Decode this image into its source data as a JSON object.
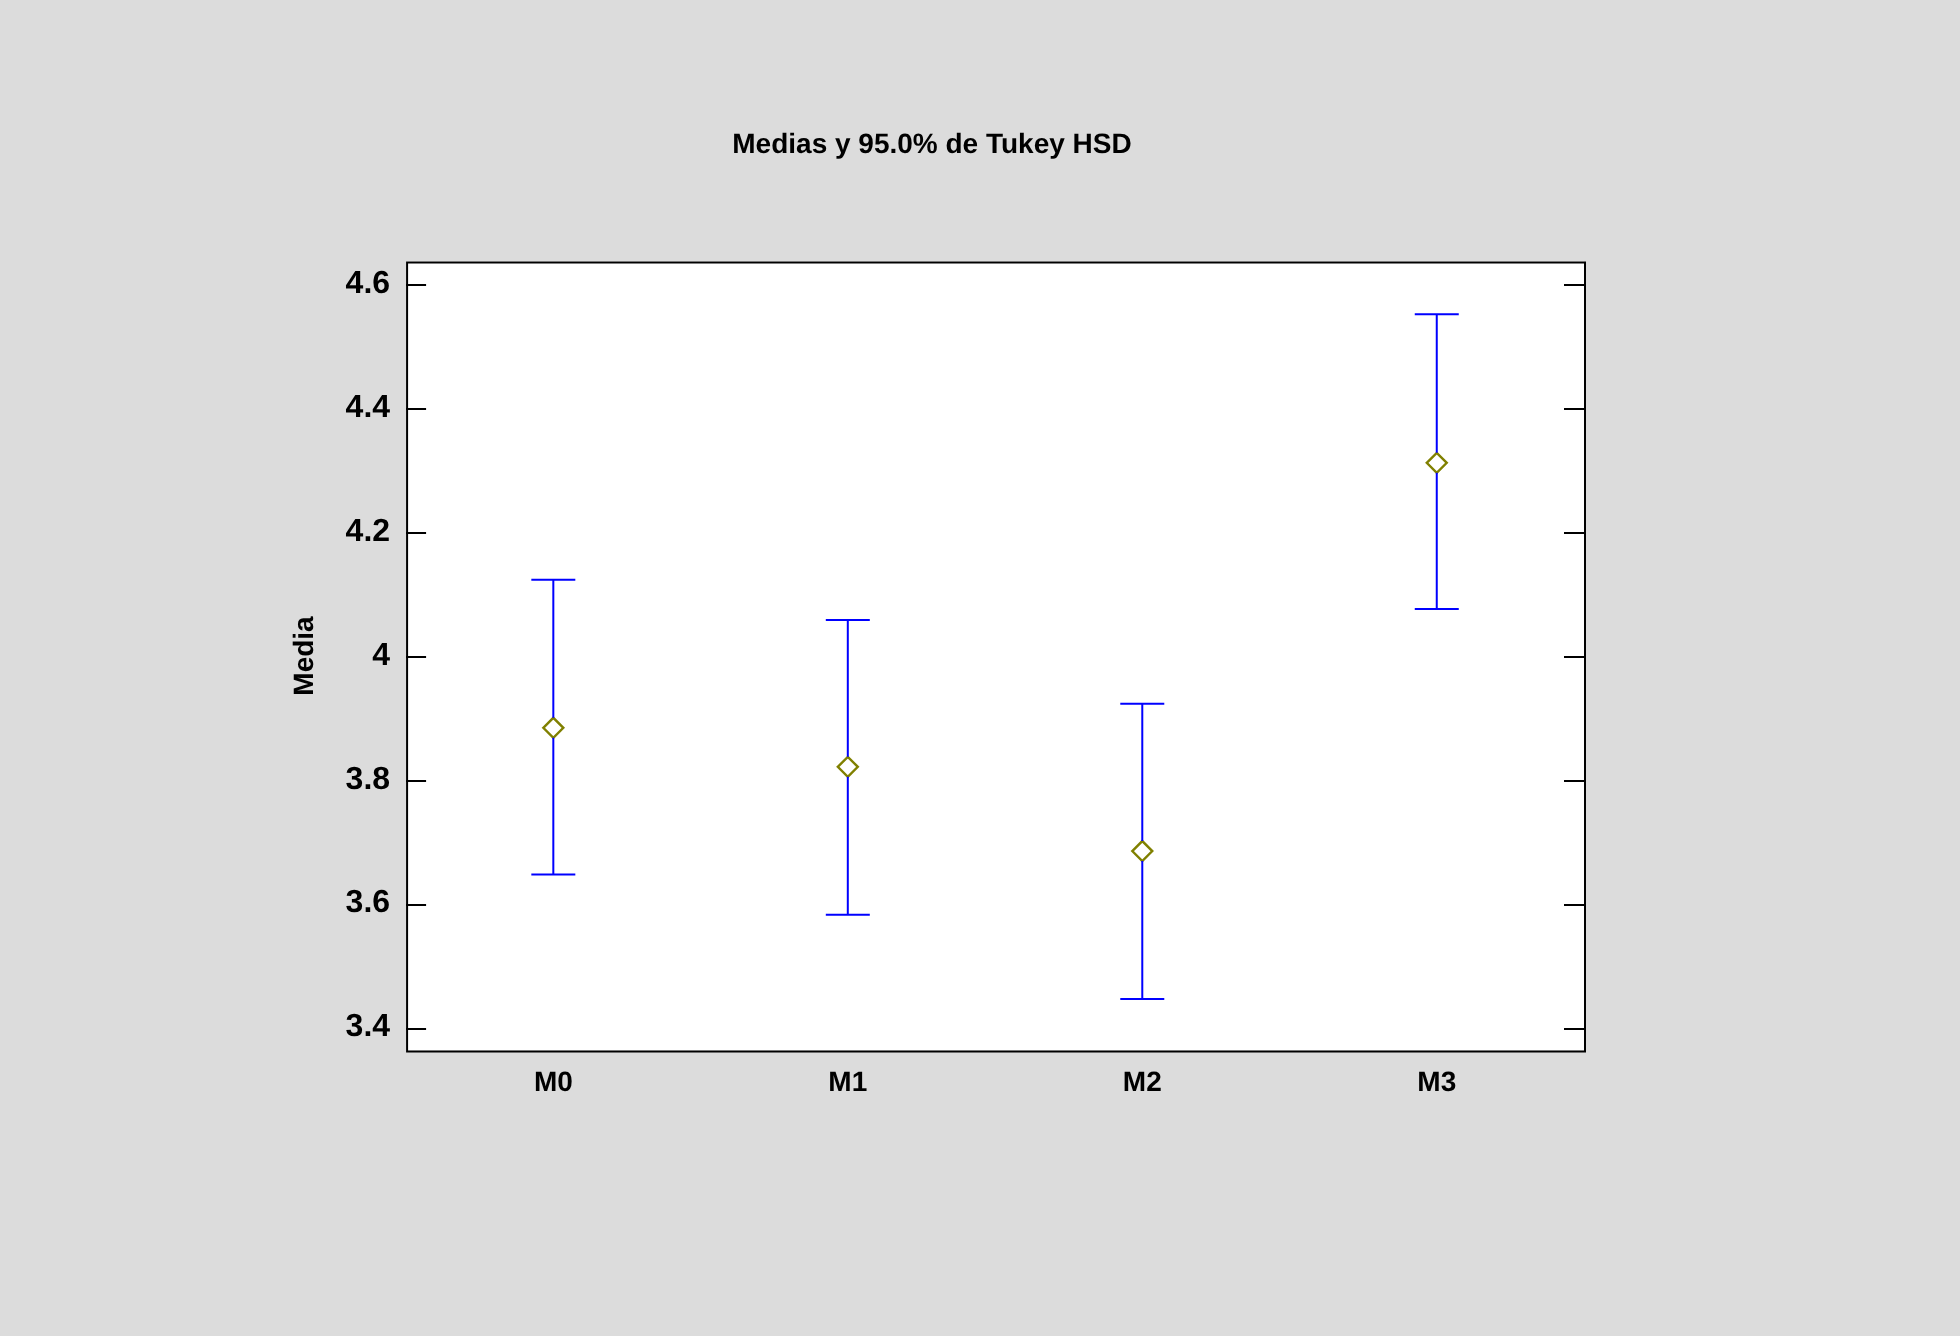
{
  "chart_data": {
    "type": "scatter",
    "title": "Medias y 95.0% de Tukey HSD",
    "ylabel": "Media",
    "categories": [
      "M0",
      "M1",
      "M2",
      "M3"
    ],
    "series": [
      {
        "color": "#808000",
        "values": [
          3.884,
          3.821,
          3.685,
          4.312
        ],
        "errors": [
          [
            3.647,
            4.123
          ],
          [
            3.582,
            4.058
          ],
          [
            3.446,
            3.923
          ],
          [
            4.076,
            4.552
          ]
        ]
      }
    ],
    "ylim": [
      3.363,
      4.637
    ],
    "yticks": [
      {
        "value": 3.4,
        "label": "3.4"
      },
      {
        "value": 3.6,
        "label": "3.6"
      },
      {
        "value": 3.8,
        "label": "3.8"
      },
      {
        "value": 4,
        "label": "4"
      },
      {
        "value": 4.2,
        "label": "4.2"
      },
      {
        "value": 4.4,
        "label": "4.4"
      },
      {
        "value": 4.6,
        "label": "4.6"
      }
    ],
    "marker": "diamond",
    "grid": false,
    "legend": false
  }
}
